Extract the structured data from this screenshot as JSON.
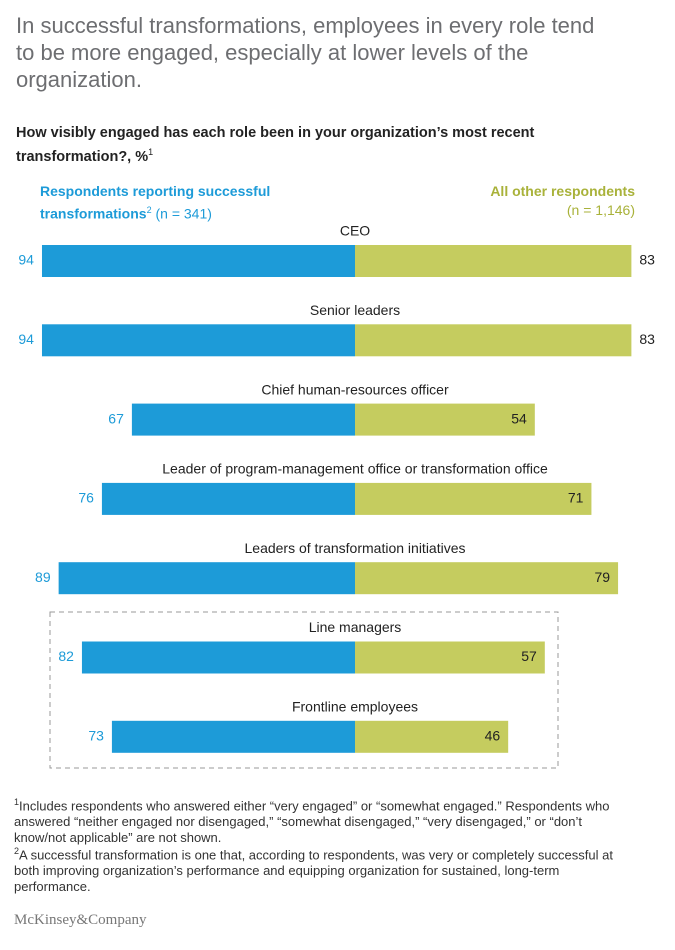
{
  "title": "In successful transformations, employees in every role tend to be more engaged, especially at lower levels of the organization.",
  "chart_data": {
    "type": "diverging_bar",
    "subtitle": "How visibly engaged has each role been in your organization’s most recent transformation?, %",
    "subtitle_note": "1",
    "categories": [
      "CEO",
      "Senior leaders",
      "Chief human-resources officer",
      "Leader of program-management office or transformation office",
      "Leaders of transformation initiatives",
      "Line managers",
      "Frontline employees"
    ],
    "series": [
      {
        "name": "Respondents reporting successful transformations",
        "name_note": "2",
        "sample": "(n = 341)",
        "color": "#1d9bd8",
        "side": "left",
        "values": [
          94,
          94,
          67,
          76,
          89,
          82,
          73
        ]
      },
      {
        "name": "All other respondents",
        "sample": "(n = 1,146)",
        "color": "#c5cc5f",
        "side": "right",
        "values": [
          83,
          83,
          54,
          71,
          79,
          57,
          46
        ]
      }
    ]
  },
  "footnotes": [
    {
      "mark": "1",
      "text": "Includes respondents who answered either “very engaged” or “somewhat engaged.” Respondents who answered “neither engaged nor disengaged,” “somewhat disengaged,” “very disengaged,” or “don’t know/not applicable” are not shown."
    },
    {
      "mark": "2",
      "text": "A successful transformation is one that, according to respondents, was very or completely successful at both improving organization’s performance and equipping organization for sustained, long-term performance."
    }
  ],
  "source": "McKinsey&Company"
}
